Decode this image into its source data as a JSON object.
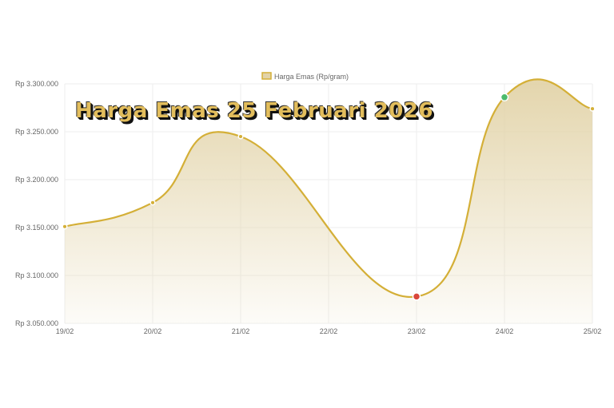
{
  "chart_data": {
    "type": "line",
    "title": "Harga Emas 25 Februari 2026",
    "categories": [
      "19/02",
      "20/02",
      "21/02",
      "22/02",
      "23/02",
      "24/02",
      "25/02"
    ],
    "series": [
      {
        "name": "Harga Emas (Rp/gram)",
        "values": [
          3151000,
          3176000,
          3245000,
          null,
          3078000,
          3286000,
          3274000
        ]
      }
    ],
    "ylim": [
      3050000,
      3300000
    ],
    "yticks": [
      "Rp 3.050.000",
      "Rp 3.100.000",
      "Rp 3.150.000",
      "Rp 3.200.000",
      "Rp 3.250.000",
      "Rp 3.300.000"
    ],
    "ytick_values": [
      3050000,
      3100000,
      3150000,
      3200000,
      3250000,
      3300000
    ],
    "grid": true,
    "legend": "top-center",
    "filled_area": true,
    "colors": {
      "line": "#d4af37",
      "fill": "#e2d3a8",
      "min_point": "#d9473b",
      "max_point": "#4cbb6c"
    }
  }
}
